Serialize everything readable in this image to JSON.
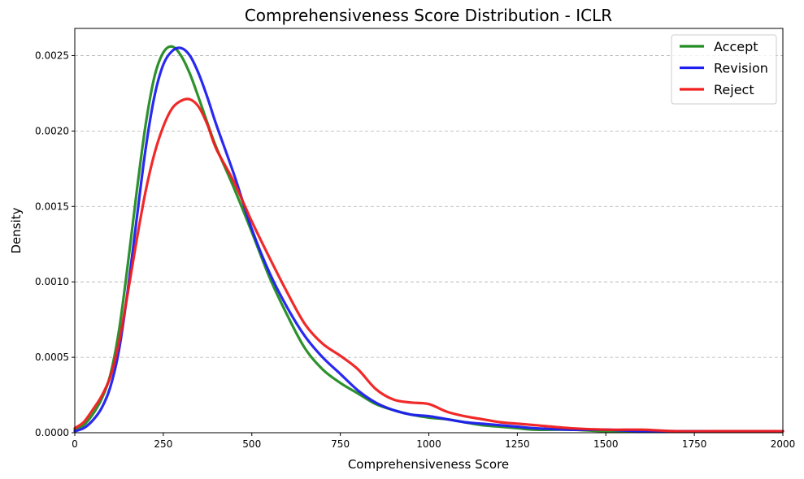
{
  "chart_data": {
    "type": "line",
    "title": "Comprehensiveness Score Distribution - ICLR",
    "xlabel": "Comprehensiveness Score",
    "ylabel": "Density",
    "xlim": [
      0,
      2000
    ],
    "ylim": [
      0,
      0.00268
    ],
    "x_ticks": [
      0,
      250,
      500,
      750,
      1000,
      1250,
      1500,
      1750,
      2000
    ],
    "x_tick_labels": [
      "0",
      "250",
      "500",
      "750",
      "1000",
      "1250",
      "1500",
      "1750",
      "2000"
    ],
    "y_ticks": [
      0,
      0.0005,
      0.001,
      0.0015,
      0.002,
      0.0025
    ],
    "y_tick_labels": [
      "0.0000",
      "0.0005",
      "0.0010",
      "0.0015",
      "0.0020",
      "0.0025"
    ],
    "grid": "y-dashed",
    "legend_position": "top-right",
    "series": [
      {
        "name": "Accept",
        "color": "#228B22",
        "x": [
          0,
          25,
          50,
          75,
          100,
          125,
          150,
          175,
          200,
          225,
          250,
          275,
          300,
          325,
          350,
          375,
          400,
          450,
          500,
          550,
          600,
          650,
          700,
          750,
          800,
          850,
          900,
          950,
          1000,
          1050,
          1100,
          1150,
          1200,
          1250,
          1300,
          1400,
          1500,
          1600,
          1700,
          1800,
          1900,
          2000
        ],
        "y": [
          2e-05,
          5e-05,
          0.00012,
          0.00022,
          0.00038,
          0.00068,
          0.00112,
          0.0016,
          0.00204,
          0.00236,
          0.00252,
          0.00256,
          0.0025,
          0.00238,
          0.00222,
          0.00205,
          0.00189,
          0.00162,
          0.00133,
          0.00103,
          0.00078,
          0.00056,
          0.00042,
          0.00033,
          0.00026,
          0.00019,
          0.00015,
          0.00012,
          0.0001,
          9e-05,
          7e-05,
          5e-05,
          4e-05,
          3e-05,
          2e-05,
          2e-05,
          1e-05,
          1e-05,
          1e-05,
          1e-05,
          1e-05,
          1e-05
        ]
      },
      {
        "name": "Revision",
        "color": "#1E1EF0",
        "x": [
          0,
          25,
          50,
          75,
          100,
          125,
          150,
          175,
          200,
          225,
          250,
          275,
          300,
          325,
          350,
          375,
          400,
          450,
          500,
          550,
          600,
          650,
          700,
          750,
          800,
          850,
          900,
          950,
          1000,
          1050,
          1100,
          1150,
          1200,
          1250,
          1300,
          1400,
          1500,
          1600,
          1700,
          1800,
          1900,
          2000
        ],
        "y": [
          1e-05,
          3e-05,
          8e-05,
          0.00016,
          0.0003,
          0.00055,
          0.00095,
          0.00142,
          0.00188,
          0.00223,
          0.00244,
          0.00253,
          0.00255,
          0.0025,
          0.00238,
          0.00222,
          0.00204,
          0.00171,
          0.00135,
          0.00106,
          0.00083,
          0.00064,
          0.0005,
          0.00039,
          0.00028,
          0.0002,
          0.00015,
          0.00012,
          0.00011,
          9e-05,
          7e-05,
          6e-05,
          5e-05,
          4e-05,
          3e-05,
          2e-05,
          2e-05,
          1e-05,
          1e-05,
          1e-05,
          1e-05,
          1e-05
        ]
      },
      {
        "name": "Reject",
        "color": "#F01E1E",
        "x": [
          0,
          25,
          50,
          75,
          100,
          125,
          150,
          175,
          200,
          225,
          250,
          275,
          300,
          325,
          350,
          375,
          400,
          450,
          500,
          550,
          600,
          650,
          700,
          750,
          800,
          850,
          900,
          950,
          1000,
          1050,
          1100,
          1150,
          1200,
          1250,
          1300,
          1400,
          1500,
          1600,
          1700,
          1800,
          1900,
          2000
        ],
        "y": [
          3e-05,
          7e-05,
          0.00015,
          0.00024,
          0.00037,
          0.0006,
          0.00093,
          0.00128,
          0.0016,
          0.00185,
          0.00203,
          0.00215,
          0.0022,
          0.00221,
          0.00216,
          0.00204,
          0.00188,
          0.00166,
          0.0014,
          0.00116,
          0.00093,
          0.00072,
          0.00059,
          0.00051,
          0.00042,
          0.00029,
          0.00022,
          0.0002,
          0.00019,
          0.00014,
          0.00011,
          9e-05,
          7e-05,
          6e-05,
          5e-05,
          3e-05,
          2e-05,
          2e-05,
          1e-05,
          1e-05,
          1e-05,
          1e-05
        ]
      }
    ]
  }
}
